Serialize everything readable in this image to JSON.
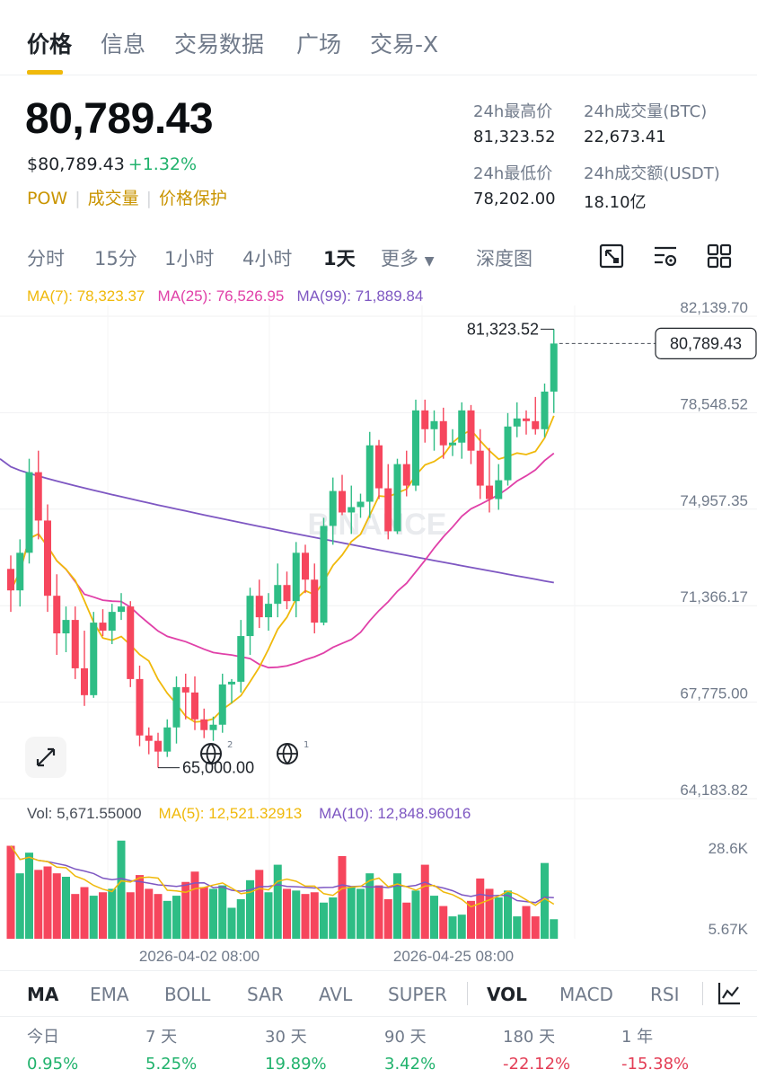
{
  "tabs": [
    "价格",
    "信息",
    "交易数据",
    "广场",
    "交易-X"
  ],
  "price": {
    "last": "80,789.43",
    "usd": "$80,789.43",
    "change": "+1.32%"
  },
  "tags": [
    "POW",
    "成交量",
    "价格保护"
  ],
  "stats": [
    {
      "label": "24h最高价",
      "value": "81,323.52"
    },
    {
      "label": "24h成交量(BTC)",
      "value": "22,673.41"
    },
    {
      "label": "24h最低价",
      "value": "78,202.00"
    },
    {
      "label": "24h成交额(USDT)",
      "value": "18.10亿"
    }
  ],
  "timeframes": [
    "分时",
    "15分",
    "1小时",
    "4小时",
    "1天",
    "更多",
    "深度图"
  ],
  "active_timeframe": "1天",
  "ma_legend": {
    "ma7": "MA(7): 78,323.37",
    "ma25": "MA(25): 76,526.95",
    "ma99": "MA(99): 71,889.84"
  },
  "vol_legend": {
    "vol": "Vol: 5,671.55000",
    "ma5": "MA(5): 12,521.32913",
    "ma10": "MA(10): 12,848.96016"
  },
  "watermark": "BINANCE",
  "colors": {
    "up": "#2ebd85",
    "down": "#f6465d",
    "ma7": "#f0b90b",
    "ma25": "#e040a8",
    "ma99": "#7e57c2",
    "accent": "#f0b90b"
  },
  "chart_data": {
    "type": "candlestick",
    "y_axis_labels": [
      "82,139.70",
      "78,548.52",
      "74,957.35",
      "71,366.17",
      "67,775.00",
      "64,183.82"
    ],
    "ylim": [
      64183.82,
      82139.7
    ],
    "current_price_label": "80,789.43",
    "high_marker": "81,323.52",
    "low_marker": "65,000.00",
    "x_labels": [
      "2026-04-02 08:00",
      "2026-04-25 08:00"
    ],
    "volume_axis_labels": [
      "28.6K",
      "5.67K"
    ],
    "candles": [
      {
        "o": 72400,
        "h": 72900,
        "l": 70800,
        "c": 71600
      },
      {
        "o": 71600,
        "h": 73500,
        "l": 71000,
        "c": 73000
      },
      {
        "o": 73000,
        "h": 76500,
        "l": 72600,
        "c": 76000
      },
      {
        "o": 76000,
        "h": 76800,
        "l": 73500,
        "c": 74200
      },
      {
        "o": 74200,
        "h": 74800,
        "l": 70800,
        "c": 71400
      },
      {
        "o": 71400,
        "h": 72200,
        "l": 69200,
        "c": 70000
      },
      {
        "o": 70000,
        "h": 71000,
        "l": 69300,
        "c": 70500
      },
      {
        "o": 70500,
        "h": 71000,
        "l": 68300,
        "c": 68700
      },
      {
        "o": 68700,
        "h": 70100,
        "l": 67300,
        "c": 67700
      },
      {
        "o": 67700,
        "h": 70800,
        "l": 67600,
        "c": 70400
      },
      {
        "o": 70400,
        "h": 70900,
        "l": 69900,
        "c": 70100
      },
      {
        "o": 70100,
        "h": 71100,
        "l": 69600,
        "c": 70800
      },
      {
        "o": 70800,
        "h": 71500,
        "l": 70500,
        "c": 71000
      },
      {
        "o": 71000,
        "h": 71200,
        "l": 68000,
        "c": 68300
      },
      {
        "o": 68300,
        "h": 68800,
        "l": 65800,
        "c": 66200
      },
      {
        "o": 66200,
        "h": 66500,
        "l": 65500,
        "c": 66000
      },
      {
        "o": 66000,
        "h": 66300,
        "l": 65000,
        "c": 65600
      },
      {
        "o": 65600,
        "h": 66800,
        "l": 65400,
        "c": 66500
      },
      {
        "o": 66500,
        "h": 68400,
        "l": 65900,
        "c": 68000
      },
      {
        "o": 68000,
        "h": 68500,
        "l": 66800,
        "c": 67800
      },
      {
        "o": 67800,
        "h": 68400,
        "l": 66400,
        "c": 66800
      },
      {
        "o": 66800,
        "h": 67200,
        "l": 66100,
        "c": 66400
      },
      {
        "o": 66400,
        "h": 66900,
        "l": 66000,
        "c": 66600
      },
      {
        "o": 66600,
        "h": 68500,
        "l": 66300,
        "c": 68100
      },
      {
        "o": 68100,
        "h": 68300,
        "l": 67400,
        "c": 68200
      },
      {
        "o": 68200,
        "h": 70500,
        "l": 67800,
        "c": 69900
      },
      {
        "o": 69900,
        "h": 71700,
        "l": 69200,
        "c": 71400
      },
      {
        "o": 71400,
        "h": 72000,
        "l": 70200,
        "c": 70600
      },
      {
        "o": 70600,
        "h": 71500,
        "l": 70100,
        "c": 71100
      },
      {
        "o": 71100,
        "h": 72600,
        "l": 70600,
        "c": 71800
      },
      {
        "o": 71800,
        "h": 72300,
        "l": 70900,
        "c": 71200
      },
      {
        "o": 71200,
        "h": 73400,
        "l": 70600,
        "c": 73000
      },
      {
        "o": 73000,
        "h": 73300,
        "l": 71500,
        "c": 72000
      },
      {
        "o": 72000,
        "h": 72600,
        "l": 70000,
        "c": 70400
      },
      {
        "o": 70400,
        "h": 74300,
        "l": 70300,
        "c": 74000
      },
      {
        "o": 74000,
        "h": 75800,
        "l": 73300,
        "c": 75300
      },
      {
        "o": 75300,
        "h": 75900,
        "l": 74400,
        "c": 74500
      },
      {
        "o": 74500,
        "h": 75500,
        "l": 73700,
        "c": 74700
      },
      {
        "o": 74700,
        "h": 75200,
        "l": 74300,
        "c": 74900
      },
      {
        "o": 74900,
        "h": 77500,
        "l": 74300,
        "c": 77000
      },
      {
        "o": 77000,
        "h": 77200,
        "l": 75000,
        "c": 75400
      },
      {
        "o": 75400,
        "h": 76300,
        "l": 73500,
        "c": 73800
      },
      {
        "o": 73800,
        "h": 76500,
        "l": 73700,
        "c": 76300
      },
      {
        "o": 76300,
        "h": 76800,
        "l": 75100,
        "c": 75500
      },
      {
        "o": 75500,
        "h": 78700,
        "l": 75300,
        "c": 78300
      },
      {
        "o": 78300,
        "h": 78700,
        "l": 77100,
        "c": 77600
      },
      {
        "o": 77600,
        "h": 78300,
        "l": 76800,
        "c": 77900
      },
      {
        "o": 77900,
        "h": 78400,
        "l": 76500,
        "c": 77000
      },
      {
        "o": 77000,
        "h": 77600,
        "l": 76600,
        "c": 77100
      },
      {
        "o": 77100,
        "h": 78600,
        "l": 76500,
        "c": 78300
      },
      {
        "o": 78300,
        "h": 78500,
        "l": 76300,
        "c": 76800
      },
      {
        "o": 76800,
        "h": 77600,
        "l": 75000,
        "c": 75500
      },
      {
        "o": 75500,
        "h": 76900,
        "l": 74500,
        "c": 75000
      },
      {
        "o": 75000,
        "h": 76300,
        "l": 74600,
        "c": 75700
      },
      {
        "o": 75700,
        "h": 78200,
        "l": 75500,
        "c": 77700
      },
      {
        "o": 77700,
        "h": 78600,
        "l": 77300,
        "c": 78000
      },
      {
        "o": 78000,
        "h": 78300,
        "l": 77400,
        "c": 77900
      },
      {
        "o": 77900,
        "h": 78800,
        "l": 77400,
        "c": 77600
      },
      {
        "o": 77600,
        "h": 79300,
        "l": 77300,
        "c": 79000
      },
      {
        "o": 79000,
        "h": 81323.52,
        "l": 78202,
        "c": 80789.43
      }
    ],
    "volumes": [
      27000,
      19000,
      25000,
      20000,
      21000,
      19000,
      18000,
      13000,
      15000,
      12500,
      13500,
      14500,
      28500,
      13500,
      18500,
      14500,
      13000,
      11000,
      12500,
      16500,
      19500,
      15000,
      14500,
      15500,
      9000,
      11500,
      17000,
      20000,
      13500,
      21500,
      14500,
      14000,
      13000,
      13500,
      10500,
      12000,
      24000,
      15000,
      14500,
      19000,
      15500,
      11500,
      19000,
      10500,
      14000,
      21500,
      12500,
      9500,
      6500,
      7000,
      11000,
      17500,
      14500,
      12000,
      14000,
      6500,
      9500,
      6500,
      22000,
      5671
    ]
  },
  "indicators": {
    "main": [
      "MA",
      "EMA",
      "BOLL",
      "SAR",
      "AVL",
      "SUPER"
    ],
    "sub": [
      "VOL",
      "MACD",
      "RSI"
    ]
  },
  "performance": [
    {
      "label": "今日",
      "value": "0.95%"
    },
    {
      "label": "7 天",
      "value": "5.25%"
    },
    {
      "label": "30 天",
      "value": "19.89%"
    },
    {
      "label": "90 天",
      "value": "3.42%"
    },
    {
      "label": "180 天",
      "value": "-22.12%"
    },
    {
      "label": "1 年",
      "value": "-15.38%"
    }
  ]
}
